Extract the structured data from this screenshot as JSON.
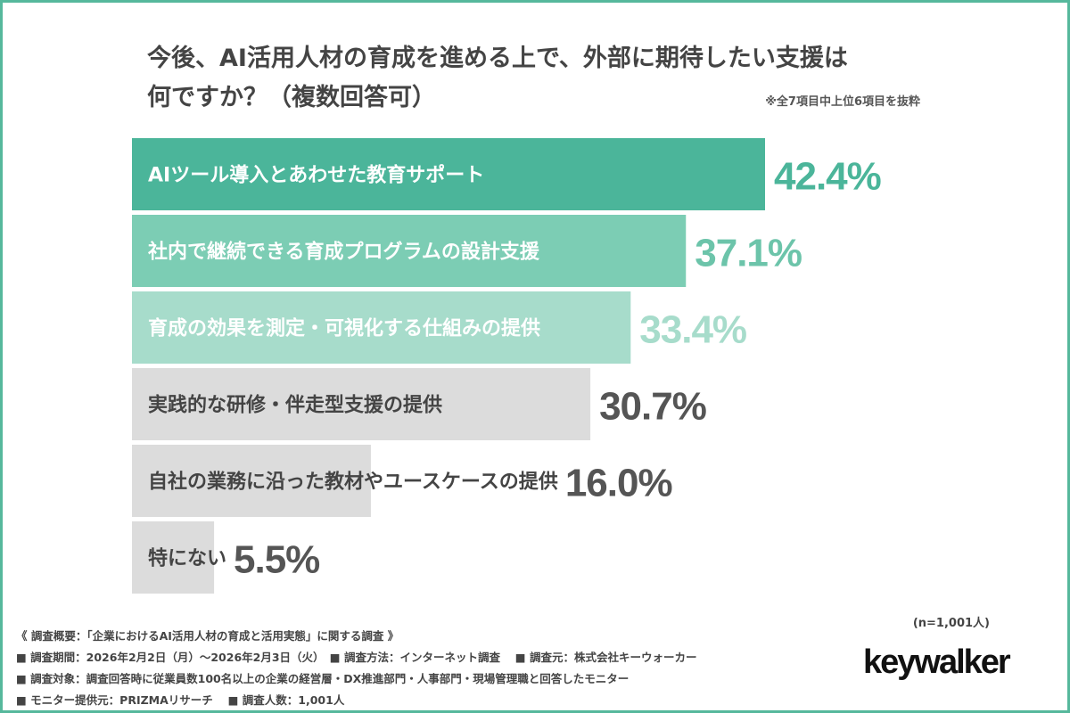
{
  "title_line1": "今後、AI活用人材の育成を進める上で、外部に期待したい支援は",
  "title_line2": "何ですか？（複数回答可）",
  "note": "※全7項目中上位6項目を抜粋",
  "sample_size": "(n=1,001人)",
  "logo": "keywalker",
  "footer": [
    "《 調査概要：「企業におけるAI活用人材の育成と活用実態」に関する調査 》",
    "■ 調査期間：2026年2月2日（月）～2026年2月3日（火）　■ 調査方法：インターネット調査　 ■ 調査元：株式会社キーウォーカー",
    "■ 調査対象：調査回答時に従業員数100名以上の企業の経営層・DX推進部門・人事部門・現場管理職と回答したモニター",
    "■ モニター提供元：PRIZMAリサーチ　 ■ 調査人数：1,001人"
  ],
  "chart_data": {
    "type": "bar",
    "orientation": "horizontal",
    "categories": [
      "AIツール導入とあわせた教育サポート",
      "社内で継続できる育成プログラムの設計支援",
      "育成の効果を測定・可視化する仕組みの提供",
      "実践的な研修・伴走型支援の提供",
      "自社の業務に沿った教材やユースケースの提供",
      "特にない"
    ],
    "values": [
      42.4,
      37.1,
      33.4,
      30.7,
      16.0,
      5.5
    ],
    "data_labels": [
      "42.4%",
      "37.1%",
      "33.4%",
      "30.7%",
      "16.0%",
      "5.5%"
    ],
    "unit": "%",
    "grid": false,
    "bar_colors": [
      "#4bb59a",
      "#7ccdb4",
      "#a7dccb",
      "#dcdcdc",
      "#dcdcdc",
      "#dcdcdc"
    ],
    "label_colors": [
      "#ffffff",
      "#ffffff",
      "#ffffff",
      "#444444",
      "#444444",
      "#444444"
    ],
    "value_colors": [
      "#4bb59a",
      "#6cc4aa",
      "#a7dccb",
      "#555555",
      "#555555",
      "#555555"
    ]
  }
}
